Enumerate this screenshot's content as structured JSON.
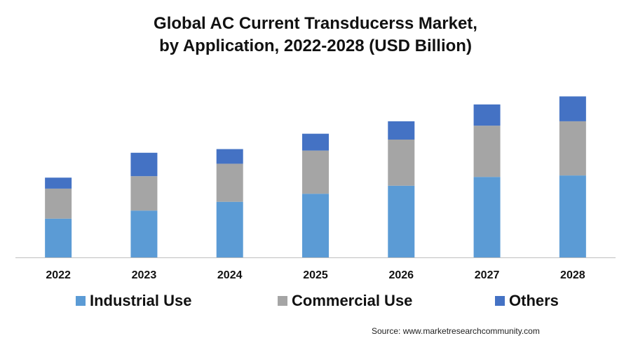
{
  "chart_data": {
    "type": "bar",
    "stacked": true,
    "title": "Global AC Current Transducerss Market,",
    "subtitle": "by Application, 2022-2028 (USD Billion)",
    "categories": [
      "2022",
      "2023",
      "2024",
      "2025",
      "2026",
      "2027",
      "2028"
    ],
    "series": [
      {
        "name": "Industrial Use",
        "color": "#5b9bd5",
        "values": [
          53,
          64,
          76,
          87,
          98,
          110,
          112
        ]
      },
      {
        "name": "Commercial Use",
        "color": "#a5a5a5",
        "values": [
          41,
          47,
          52,
          59,
          63,
          70,
          74
        ]
      },
      {
        "name": "Others",
        "color": "#4472c4",
        "values": [
          15,
          32,
          20,
          23,
          25,
          29,
          34
        ]
      }
    ],
    "xlabel": "",
    "ylabel": "",
    "ylim": [
      0,
      230
    ],
    "grid": false,
    "legend_position": "bottom"
  },
  "source": "Source: www.marketresearchcommunity.com"
}
